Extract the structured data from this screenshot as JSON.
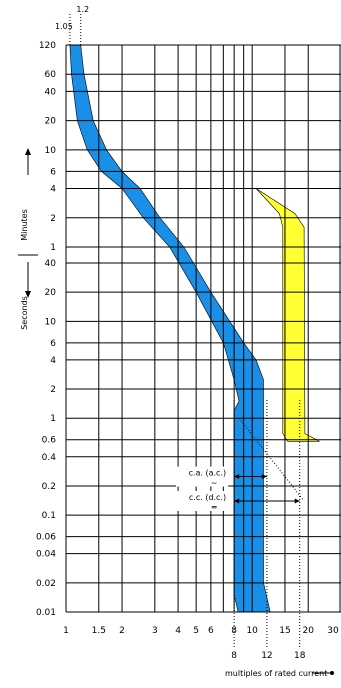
{
  "chart_data": {
    "type": "area",
    "title": "",
    "xlabel": "multiples of rated current",
    "x_scale": "log",
    "xlim": [
      1,
      30
    ],
    "x_ticks": [
      {
        "v": 1,
        "label": "1"
      },
      {
        "v": 1.5,
        "label": "1.5"
      },
      {
        "v": 2,
        "label": "2"
      },
      {
        "v": 3,
        "label": "3"
      },
      {
        "v": 4,
        "label": "4"
      },
      {
        "v": 5,
        "label": "5"
      },
      {
        "v": 6,
        "label": "6"
      },
      {
        "v": 8,
        "label": "8"
      },
      {
        "v": 10,
        "label": "10"
      },
      {
        "v": 15,
        "label": "15"
      },
      {
        "v": 20,
        "label": "20"
      },
      {
        "v": 30,
        "label": "30"
      }
    ],
    "minute_ticks": [
      {
        "v": 120,
        "label": "120"
      },
      {
        "v": 60,
        "label": "60"
      },
      {
        "v": 40,
        "label": "40"
      },
      {
        "v": 20,
        "label": "20"
      },
      {
        "v": 10,
        "label": "10"
      },
      {
        "v": 6,
        "label": "6"
      },
      {
        "v": 4,
        "label": "4"
      },
      {
        "v": 2,
        "label": "2"
      },
      {
        "v": 1,
        "label": "1"
      }
    ],
    "second_ticks": [
      {
        "v": 40,
        "label": "40"
      },
      {
        "v": 20,
        "label": "20"
      },
      {
        "v": 10,
        "label": "10"
      },
      {
        "v": 6,
        "label": "6"
      },
      {
        "v": 4,
        "label": "4"
      },
      {
        "v": 2,
        "label": "2"
      },
      {
        "v": 1,
        "label": "1"
      },
      {
        "v": 0.6,
        "label": "0.6"
      },
      {
        "v": 0.4,
        "label": "0.4"
      },
      {
        "v": 0.2,
        "label": "0.2"
      },
      {
        "v": 0.1,
        "label": "0.1"
      },
      {
        "v": 0.06,
        "label": "0.06"
      },
      {
        "v": 0.04,
        "label": "0.04"
      },
      {
        "v": 0.02,
        "label": "0.02"
      },
      {
        "v": 0.01,
        "label": "0.01"
      }
    ],
    "y_unit_minutes": "Minutes",
    "y_unit_seconds": "Seconds",
    "top_markers": [
      {
        "x": 1.05,
        "label": "1.05"
      },
      {
        "x": 1.2,
        "label": "1.2"
      }
    ],
    "bottom_markers": [
      {
        "x": 8,
        "label": "8"
      },
      {
        "x": 12,
        "label": "12"
      },
      {
        "x": 18,
        "label": "18"
      }
    ],
    "annotations": [
      {
        "label": "c.a. (a.c.)",
        "symbol": "~",
        "y": 0.25,
        "x_from": 8,
        "x_to": 12
      },
      {
        "label": "c.c. (d.c.)",
        "symbol": "═",
        "y": 0.14,
        "x_from": 8,
        "x_to": 18
      }
    ],
    "series": [
      {
        "color": "#ffff33",
        "lower": [
          [
            10.5,
            4.0
          ],
          [
            14.0,
            2.2
          ],
          [
            14.6,
            1.6
          ],
          [
            14.6,
            0.012
          ],
          [
            15.5,
            0.01
          ]
        ],
        "upper": [
          [
            10.5,
            4.0
          ],
          [
            17.0,
            2.2
          ],
          [
            19.0,
            1.6
          ],
          [
            19.2,
            0.012
          ],
          [
            23.0,
            0.01
          ]
        ]
      },
      {
        "color": "#1a8fe8",
        "lower": [
          [
            1.05,
            120
          ],
          [
            1.07,
            60
          ],
          [
            1.15,
            20
          ],
          [
            1.3,
            10
          ],
          [
            1.55,
            6
          ],
          [
            2.0,
            4
          ],
          [
            2.6,
            2
          ],
          [
            3.6,
            1
          ],
          [
            5.0,
            20
          ],
          [
            7.0,
            6
          ],
          [
            8.0,
            2.5
          ],
          [
            8.5,
            1.5
          ],
          [
            8.0,
            1.2
          ],
          [
            8.0,
            0.015
          ],
          [
            8.4,
            0.01
          ]
        ],
        "upper": [
          [
            1.2,
            120
          ],
          [
            1.25,
            60
          ],
          [
            1.4,
            20
          ],
          [
            1.65,
            10
          ],
          [
            2.0,
            6
          ],
          [
            2.5,
            4
          ],
          [
            3.2,
            2
          ],
          [
            4.3,
            1
          ],
          [
            6.0,
            20
          ],
          [
            9.0,
            6
          ],
          [
            10.5,
            4
          ],
          [
            11.5,
            2.5
          ],
          [
            11.5,
            0.02
          ],
          [
            12.5,
            0.01
          ]
        ]
      }
    ]
  }
}
